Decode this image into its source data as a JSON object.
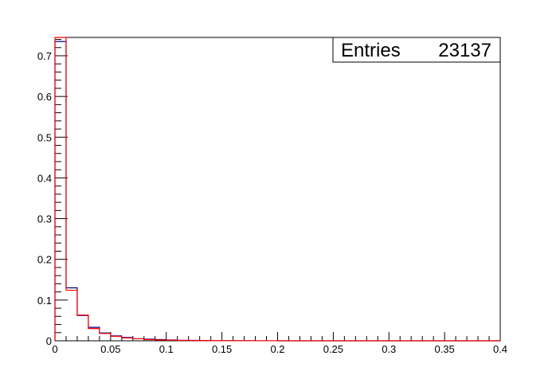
{
  "chart_data": {
    "type": "histogram",
    "title": "",
    "xlabel": "",
    "ylabel": "",
    "xlim": [
      0,
      0.4
    ],
    "ylim": [
      0,
      0.745
    ],
    "bin_width": 0.01,
    "x_ticks": [
      "0",
      "0.05",
      "0.1",
      "0.15",
      "0.2",
      "0.25",
      "0.3",
      "0.35",
      "0.4"
    ],
    "y_ticks": [
      "0",
      "0.1",
      "0.2",
      "0.3",
      "0.4",
      "0.5",
      "0.6",
      "0.7"
    ],
    "grid": false,
    "series": [
      {
        "color": "#000080",
        "values": [
          0.735,
          0.13,
          0.062,
          0.033,
          0.019,
          0.012,
          0.008,
          0.005,
          0.004,
          0.003,
          0.002,
          0.001,
          0.001,
          0.0005,
          0.0004,
          0.0003,
          0.0002,
          0.0002,
          0.0001,
          0.0001
        ]
      },
      {
        "color": "#ff0000",
        "values": [
          0.745,
          0.124,
          0.063,
          0.03,
          0.018,
          0.011,
          0.007,
          0.005,
          0.003,
          0.002,
          0.0015,
          0.001,
          0.0008,
          0.0005,
          0.0003,
          0.0002,
          0.0001,
          0.0001,
          0.0001,
          0.0001
        ]
      }
    ],
    "stats_box": {
      "label": "Entries",
      "value": "23137"
    }
  }
}
